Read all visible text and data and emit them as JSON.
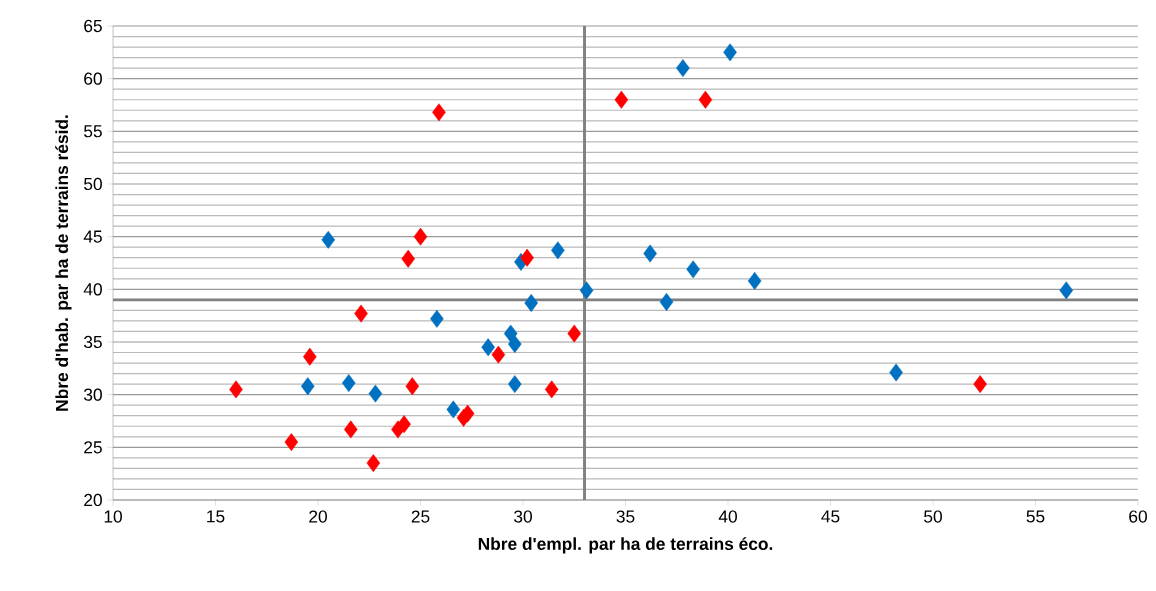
{
  "chart_data": {
    "type": "scatter",
    "xlabel": "Nbre d'empl. par ha de terrains éco.",
    "ylabel": "Nbre d'hab. par ha de terrains résid.",
    "xlim": [
      10,
      60
    ],
    "xticks": [
      10,
      15,
      20,
      25,
      30,
      35,
      40,
      45,
      50,
      55,
      60
    ],
    "ylim": [
      20,
      65
    ],
    "yticks": [
      20,
      25,
      30,
      35,
      40,
      45,
      50,
      55,
      60,
      65
    ],
    "grid": "y",
    "marker": "diamond",
    "series": [
      {
        "color": "#0070c0",
        "x": [
          19.5,
          20.5,
          21.5,
          22.8,
          25.8,
          26.6,
          28.3,
          29.4,
          29.6,
          29.6,
          29.9,
          30.4,
          31.7,
          33.1,
          36.2,
          37.0,
          37.8,
          38.3,
          40.1,
          41.3,
          48.2,
          56.5
        ],
        "values": [
          30.8,
          44.7,
          31.1,
          30.1,
          37.2,
          28.6,
          34.5,
          35.8,
          34.8,
          31.0,
          42.6,
          38.7,
          43.7,
          39.9,
          43.4,
          38.8,
          61.0,
          41.9,
          62.5,
          40.8,
          32.1,
          39.9
        ]
      },
      {
        "color": "#ff0000",
        "x": [
          16.0,
          18.7,
          19.6,
          21.6,
          22.1,
          22.7,
          23.9,
          24.2,
          24.4,
          24.6,
          25.0,
          25.9,
          27.1,
          27.3,
          28.8,
          30.2,
          31.4,
          32.5,
          34.8,
          38.9,
          52.3
        ],
        "values": [
          30.5,
          25.5,
          33.6,
          26.7,
          37.7,
          23.5,
          26.7,
          27.2,
          42.9,
          30.8,
          45.0,
          56.8,
          27.8,
          28.2,
          33.8,
          43.0,
          30.5,
          35.8,
          58.0,
          58.0,
          31.0
        ]
      }
    ],
    "ref_lines": [
      {
        "axis": "x",
        "value": 33,
        "color": "#808080"
      },
      {
        "axis": "y",
        "value": 39,
        "color": "#808080"
      }
    ]
  }
}
